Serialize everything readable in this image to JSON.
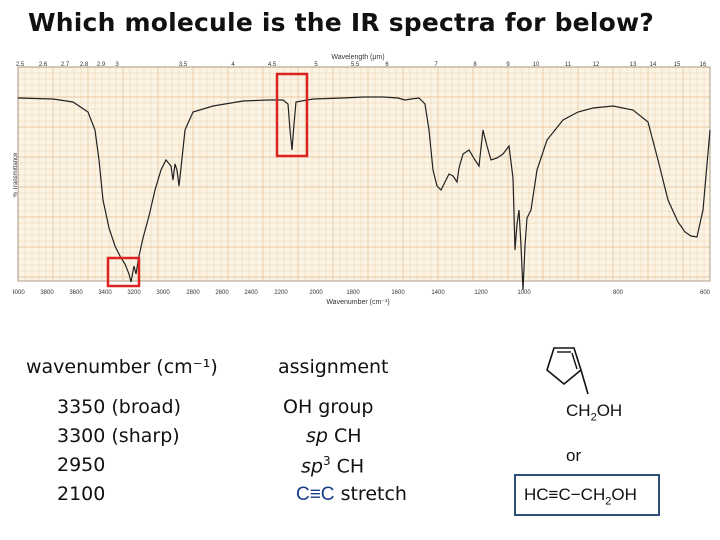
{
  "title": "Which molecule is the IR spectra for below?",
  "spectrum": {
    "y_axis_label": "% Transmittance",
    "top_axis_label": "Wavelength (μm)",
    "bottom_axis_label": "Wavenumber (cm⁻¹)",
    "top_ticks": [
      "2.5",
      "2.6",
      "2.7",
      "2.8",
      "2.9",
      "3",
      "3.5",
      "4",
      "4.5",
      "5",
      "5.5",
      "6",
      "7",
      "8",
      "9",
      "10",
      "11",
      "12",
      "13",
      "14",
      "15",
      "16"
    ],
    "bottom_ticks": [
      "4000",
      "3800",
      "3600",
      "3400",
      "3200",
      "3000",
      "2800",
      "2600",
      "2400",
      "2200",
      "2000",
      "1800",
      "1600",
      "1400",
      "1200",
      "1000",
      "800",
      "600"
    ],
    "highlight_color": "#dd2222",
    "grid_color": "#e8c9a4",
    "background_color": "#fbf4e4"
  },
  "table": {
    "header_wavenumber": "wavenumber (cm⁻¹)",
    "header_assignment": "assignment",
    "rows": [
      {
        "wavenumber": "3350 (broad)",
        "assignment": "OH group"
      },
      {
        "wavenumber": "3300 (sharp)",
        "assignment_italic": "sp",
        "assignment_rest": " CH"
      },
      {
        "wavenumber": "2950",
        "assignment_italic": "sp",
        "assignment_sup": "3",
        "assignment_rest": " CH"
      },
      {
        "wavenumber": "2100",
        "assignment_bond": "C≡C",
        "assignment_rest": " stretch"
      }
    ]
  },
  "molecules": {
    "option1_substituent": "CH2OH",
    "or_label": "or",
    "option2_formula": "HC≡C−CH2OH",
    "box_color": "#2c4f7c"
  }
}
